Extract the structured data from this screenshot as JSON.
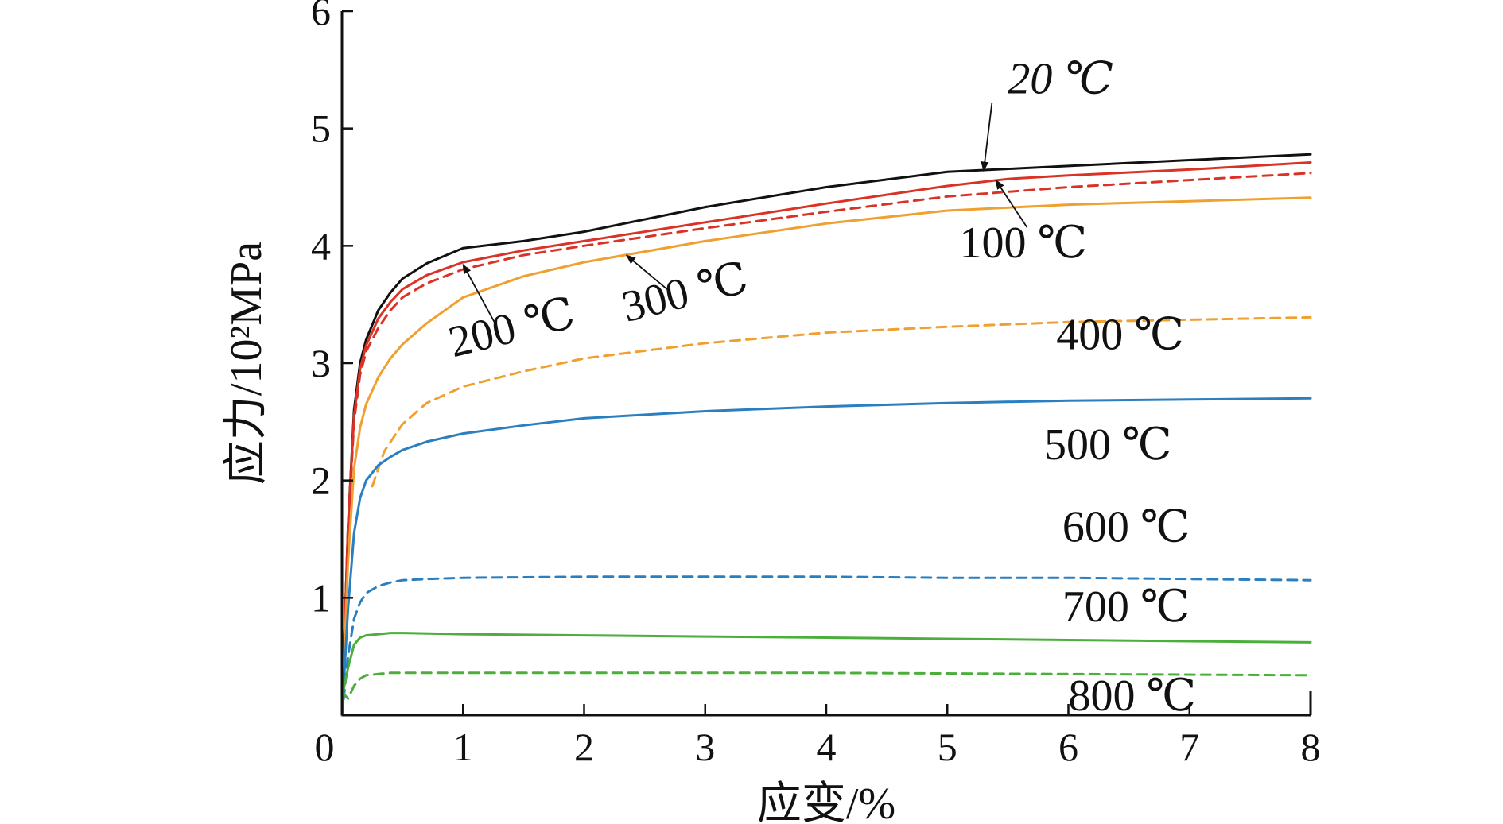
{
  "chart_data": {
    "type": "line",
    "title": "",
    "xlabel": "应变/%",
    "ylabel": "应力/10²MPa",
    "xlim": [
      0,
      8
    ],
    "ylim": [
      0,
      6
    ],
    "xticks": [
      "0",
      "1",
      "2",
      "3",
      "4",
      "5",
      "6",
      "7",
      "8"
    ],
    "yticks": [
      "1",
      "2",
      "3",
      "4",
      "5",
      "6"
    ],
    "grid": false,
    "series": [
      {
        "name": "20 ℃",
        "color": "#111111",
        "dash": "solid",
        "x": [
          0,
          0.05,
          0.1,
          0.15,
          0.2,
          0.3,
          0.4,
          0.5,
          0.7,
          1.0,
          1.5,
          2.0,
          3.0,
          4.0,
          5.0,
          6.0,
          7.0,
          8.0
        ],
        "y": [
          0,
          1.6,
          2.6,
          3.0,
          3.2,
          3.45,
          3.6,
          3.72,
          3.85,
          3.98,
          4.04,
          4.12,
          4.33,
          4.5,
          4.63,
          4.68,
          4.73,
          4.78
        ]
      },
      {
        "name": "100 ℃",
        "color": "#d93327",
        "dash": "solid",
        "x": [
          0,
          0.05,
          0.1,
          0.15,
          0.2,
          0.3,
          0.4,
          0.5,
          0.7,
          1.0,
          1.5,
          2.0,
          3.0,
          4.0,
          5.0,
          5.5,
          6.0,
          7.0,
          8.0
        ],
        "y": [
          0,
          1.6,
          2.55,
          2.95,
          3.15,
          3.38,
          3.52,
          3.63,
          3.75,
          3.86,
          3.96,
          4.04,
          4.2,
          4.36,
          4.51,
          4.57,
          4.6,
          4.65,
          4.71
        ]
      },
      {
        "name": "200 ℃",
        "color": "#d93327",
        "dash": "dashed",
        "x": [
          0,
          0.05,
          0.1,
          0.15,
          0.2,
          0.3,
          0.4,
          0.5,
          0.7,
          1.0,
          1.5,
          2.0,
          3.0,
          4.0,
          5.0,
          6.0,
          7.0,
          8.0
        ],
        "y": [
          0,
          1.55,
          2.5,
          2.9,
          3.1,
          3.3,
          3.45,
          3.56,
          3.68,
          3.8,
          3.92,
          4.0,
          4.15,
          4.29,
          4.42,
          4.5,
          4.56,
          4.62
        ]
      },
      {
        "name": "300 ℃",
        "color": "#f0a030",
        "dash": "solid",
        "x": [
          0,
          0.05,
          0.1,
          0.15,
          0.2,
          0.3,
          0.4,
          0.5,
          0.7,
          1.0,
          1.5,
          2.0,
          3.0,
          4.0,
          5.0,
          6.0,
          7.0,
          8.0
        ],
        "y": [
          0,
          1.3,
          2.1,
          2.45,
          2.65,
          2.88,
          3.04,
          3.16,
          3.34,
          3.56,
          3.74,
          3.86,
          4.04,
          4.19,
          4.3,
          4.35,
          4.38,
          4.41
        ]
      },
      {
        "name": "400 ℃",
        "color": "#f0a030",
        "dash": "dashed",
        "x": [
          0.25,
          0.35,
          0.5,
          0.7,
          1.0,
          1.5,
          2.0,
          3.0,
          4.0,
          5.0,
          6.0,
          7.0,
          8.0
        ],
        "y": [
          1.95,
          2.25,
          2.48,
          2.66,
          2.8,
          2.93,
          3.04,
          3.17,
          3.26,
          3.31,
          3.35,
          3.37,
          3.39
        ]
      },
      {
        "name": "500 ℃",
        "color": "#2a7fc1",
        "dash": "solid",
        "x": [
          0,
          0.05,
          0.1,
          0.15,
          0.2,
          0.3,
          0.4,
          0.5,
          0.7,
          1.0,
          1.5,
          2.0,
          3.0,
          4.0,
          5.0,
          6.0,
          7.0,
          8.0
        ],
        "y": [
          0,
          0.9,
          1.55,
          1.85,
          2.0,
          2.13,
          2.2,
          2.26,
          2.33,
          2.4,
          2.47,
          2.53,
          2.59,
          2.63,
          2.66,
          2.68,
          2.69,
          2.7
        ]
      },
      {
        "name": "600 ℃",
        "color": "#2a7fc1",
        "dash": "dashed",
        "x": [
          0,
          0.05,
          0.1,
          0.15,
          0.2,
          0.3,
          0.4,
          0.5,
          0.7,
          1.0,
          2.0,
          3.0,
          4.0,
          5.0,
          6.0,
          7.0,
          8.0
        ],
        "y": [
          0,
          0.5,
          0.82,
          0.96,
          1.04,
          1.1,
          1.13,
          1.15,
          1.16,
          1.17,
          1.18,
          1.18,
          1.18,
          1.17,
          1.17,
          1.16,
          1.15
        ]
      },
      {
        "name": "700 ℃",
        "color": "#4caf3c",
        "dash": "solid",
        "x": [
          0,
          0.05,
          0.1,
          0.15,
          0.2,
          0.3,
          0.4,
          0.5,
          1.0,
          2.0,
          3.0,
          4.0,
          5.0,
          6.0,
          7.0,
          8.0
        ],
        "y": [
          0.15,
          0.4,
          0.6,
          0.66,
          0.68,
          0.69,
          0.7,
          0.7,
          0.69,
          0.68,
          0.67,
          0.66,
          0.65,
          0.64,
          0.63,
          0.62
        ]
      },
      {
        "name": "800 ℃",
        "color": "#4caf3c",
        "dash": "dashed",
        "x": [
          0,
          0.05,
          0.1,
          0.15,
          0.2,
          0.3,
          0.4,
          0.6,
          1.0,
          2.0,
          4.0,
          6.0,
          8.0
        ],
        "y": [
          0.2,
          0.14,
          0.25,
          0.31,
          0.34,
          0.35,
          0.36,
          0.36,
          0.36,
          0.36,
          0.36,
          0.35,
          0.34
        ]
      }
    ],
    "annotations": [
      {
        "text": "20 ℃",
        "x": 5.5,
        "y": 5.3,
        "italic": true,
        "arrow_to": [
          5.3,
          4.64
        ]
      },
      {
        "text": "100 ℃",
        "x": 5.1,
        "y": 3.9,
        "italic": false,
        "arrow_to": [
          5.4,
          4.56
        ]
      },
      {
        "text": "200 ℃",
        "x": 0.92,
        "y": 3.05,
        "italic": false,
        "rotate": -14,
        "arrow_to": [
          1.0,
          3.84
        ]
      },
      {
        "text": "300 ℃",
        "x": 2.35,
        "y": 3.35,
        "italic": false,
        "rotate": -14,
        "arrow_to": [
          2.35,
          3.92
        ]
      },
      {
        "text": "400 ℃",
        "x": 5.9,
        "y": 3.12,
        "italic": false
      },
      {
        "text": "500 ℃",
        "x": 5.8,
        "y": 2.18,
        "italic": false
      },
      {
        "text": "600 ℃",
        "x": 5.95,
        "y": 1.48,
        "italic": false
      },
      {
        "text": "700 ℃",
        "x": 5.95,
        "y": 0.8,
        "italic": false
      },
      {
        "text": "800 ℃",
        "x": 6.0,
        "y": 0.04,
        "italic": false
      }
    ]
  }
}
